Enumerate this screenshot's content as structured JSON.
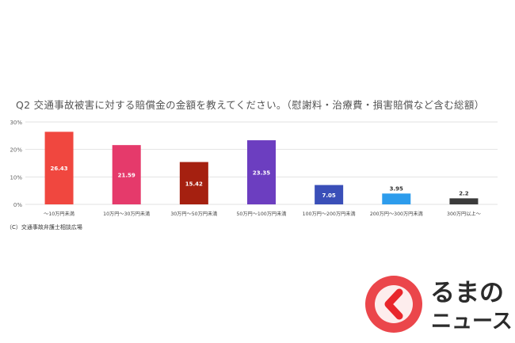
{
  "title": "Q2 交通事故被害に対する賠償金の金額を教えてください。（慰謝料・治療費・損害賠償など含む総額）",
  "source": "（C）交通事故弁護士相談広場",
  "brand": {
    "line1": "るまの",
    "line2": "ニュース",
    "accent": "#e8262c",
    "text_color": "#2b2b2b"
  },
  "chart_data": {
    "type": "bar",
    "title": "Q2 交通事故被害に対する賠償金の金額を教えてください。（慰謝料・治療費・損害賠償など含む総額）",
    "xlabel": "",
    "ylabel": "",
    "ylim": [
      0,
      30
    ],
    "yticks": [
      "0%",
      "10%",
      "20%",
      "30%"
    ],
    "grid": true,
    "categories": [
      "～10万円未満",
      "10万円～30万円未満",
      "30万円～50万円未満",
      "50万円～100万円未満",
      "100万円～200万円未満",
      "200万円～300万円未満",
      "300万円以上～"
    ],
    "values": [
      26.43,
      21.59,
      15.42,
      23.35,
      7.05,
      3.95,
      2.2
    ],
    "value_labels": [
      "26.43",
      "21.59",
      "15.42",
      "23.35",
      "7.05",
      "3.95",
      "2.2"
    ],
    "colors": [
      "#f0473f",
      "#e53a6b",
      "#a52010",
      "#6c3ec0",
      "#3a4fb8",
      "#2d9cec",
      "#3b3b3b"
    ]
  }
}
